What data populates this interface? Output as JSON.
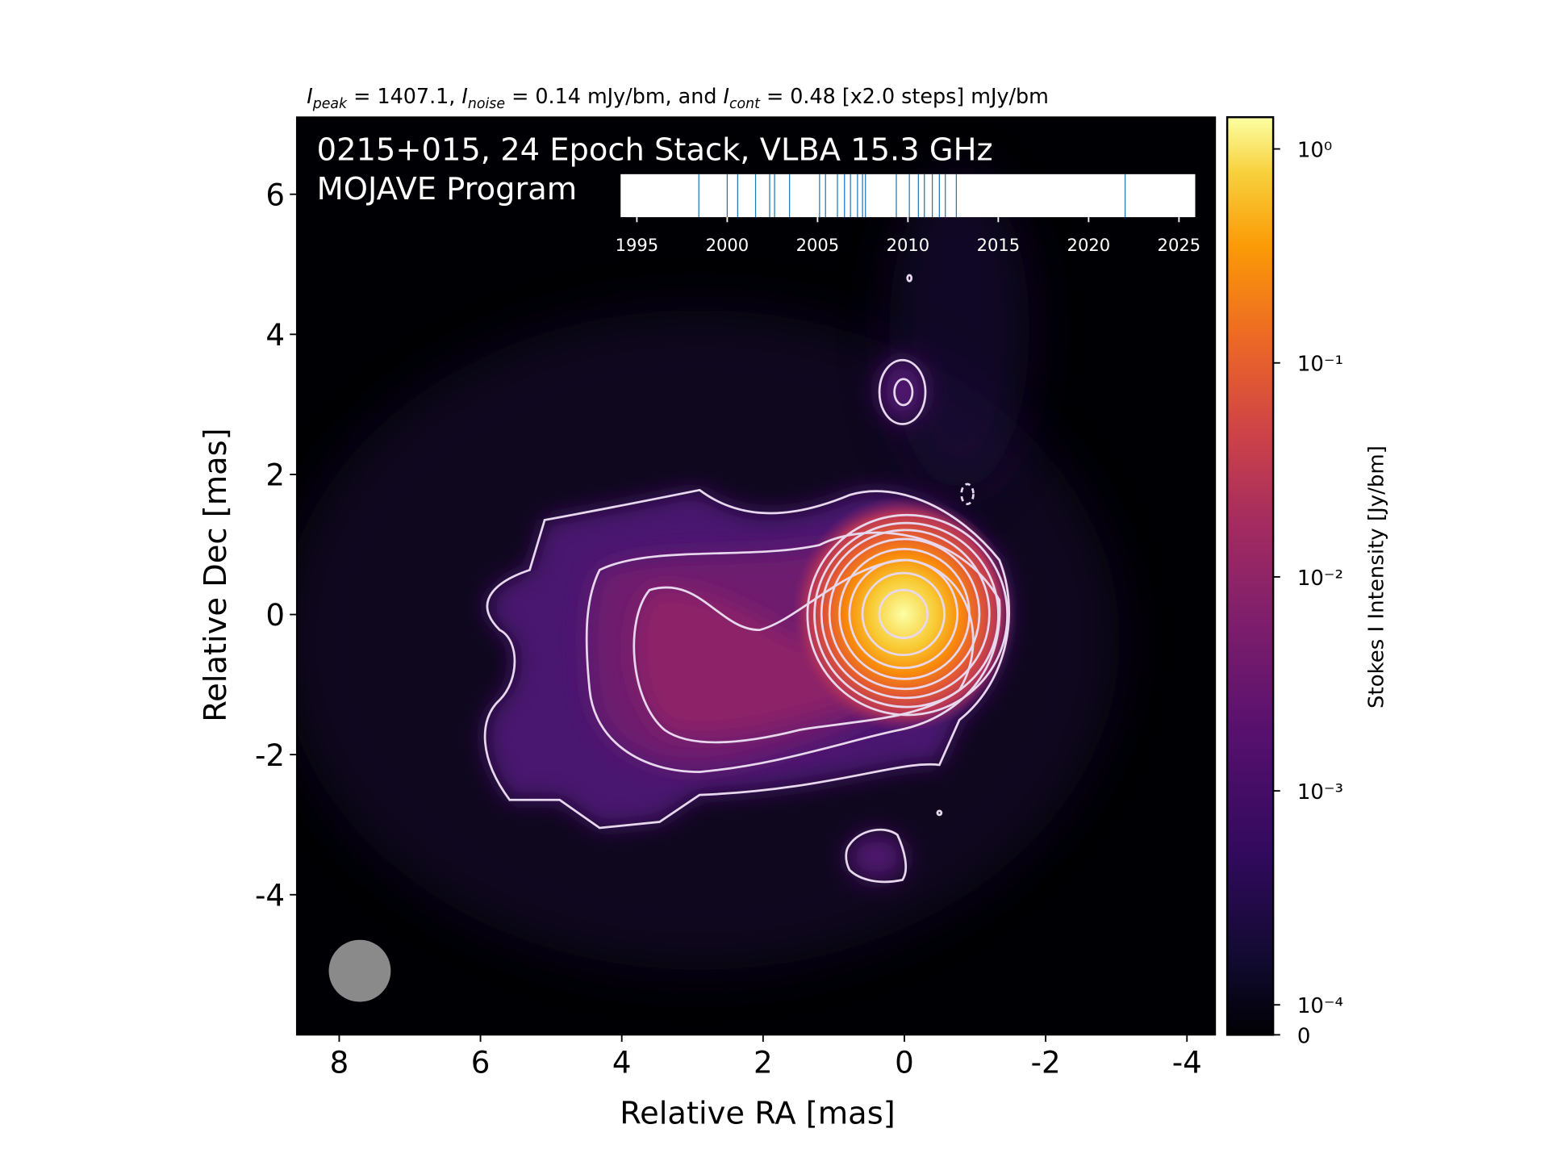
{
  "chart_data": {
    "type": "image",
    "title_parts": [
      {
        "text": "I",
        "italic": true
      },
      {
        "text": "peak",
        "italic": true,
        "sub": true
      },
      {
        "text": " = 1407.1, "
      },
      {
        "text": "I",
        "italic": true
      },
      {
        "text": "noise",
        "italic": true,
        "sub": true
      },
      {
        "text": " = 0.14 mJy/bm, and "
      },
      {
        "text": "I",
        "italic": true
      },
      {
        "text": "cont",
        "italic": true,
        "sub": true
      },
      {
        "text": " = 0.48 [x2.0 steps] mJy/bm"
      }
    ],
    "annotation": [
      "0215+015, 24 Epoch Stack, VLBA 15.3 GHz",
      "MOJAVE Program"
    ],
    "x_label": "Relative RA [mas]",
    "y_label": "Relative Dec [mas]",
    "xlim": [
      8.6,
      -4.4
    ],
    "ylim": [
      -6.0,
      7.1
    ],
    "xticks": [
      8,
      6,
      4,
      2,
      0,
      -2,
      -4
    ],
    "yticks": [
      -4,
      -2,
      0,
      2,
      4,
      6
    ],
    "colorbar": {
      "label": "Stokes I Intensity [Jy/bm]",
      "clim": [
        0,
        1.4071
      ],
      "scale": "symlog",
      "linthresh": 0.0001,
      "linscale": 0.14,
      "ticks": [
        0,
        {
          "value": 0.0001,
          "label": "10⁻⁴"
        },
        {
          "value": 0.001,
          "label": "10⁻³"
        },
        {
          "value": 0.01,
          "label": "10⁻²"
        },
        {
          "value": 0.1,
          "label": "10⁻¹"
        },
        {
          "value": 1,
          "label": "10⁰"
        }
      ]
    },
    "epochs": {
      "xlim": [
        1994.1,
        2025.9
      ],
      "xticks": [
        1995,
        2000,
        2005,
        2010,
        2015,
        2020,
        2025
      ],
      "color": "#1f77b4",
      "values": [
        1998.43,
        2000.0,
        2000.58,
        2001.57,
        2002.35,
        2002.62,
        2003.45,
        2005.11,
        2005.44,
        2006.1,
        2006.49,
        2006.82,
        2007.21,
        2007.49,
        2007.65,
        2009.36,
        2010.08,
        2010.58,
        2010.91,
        2011.35,
        2011.74,
        2012.07,
        2012.68,
        2022.02
      ]
    }
  }
}
